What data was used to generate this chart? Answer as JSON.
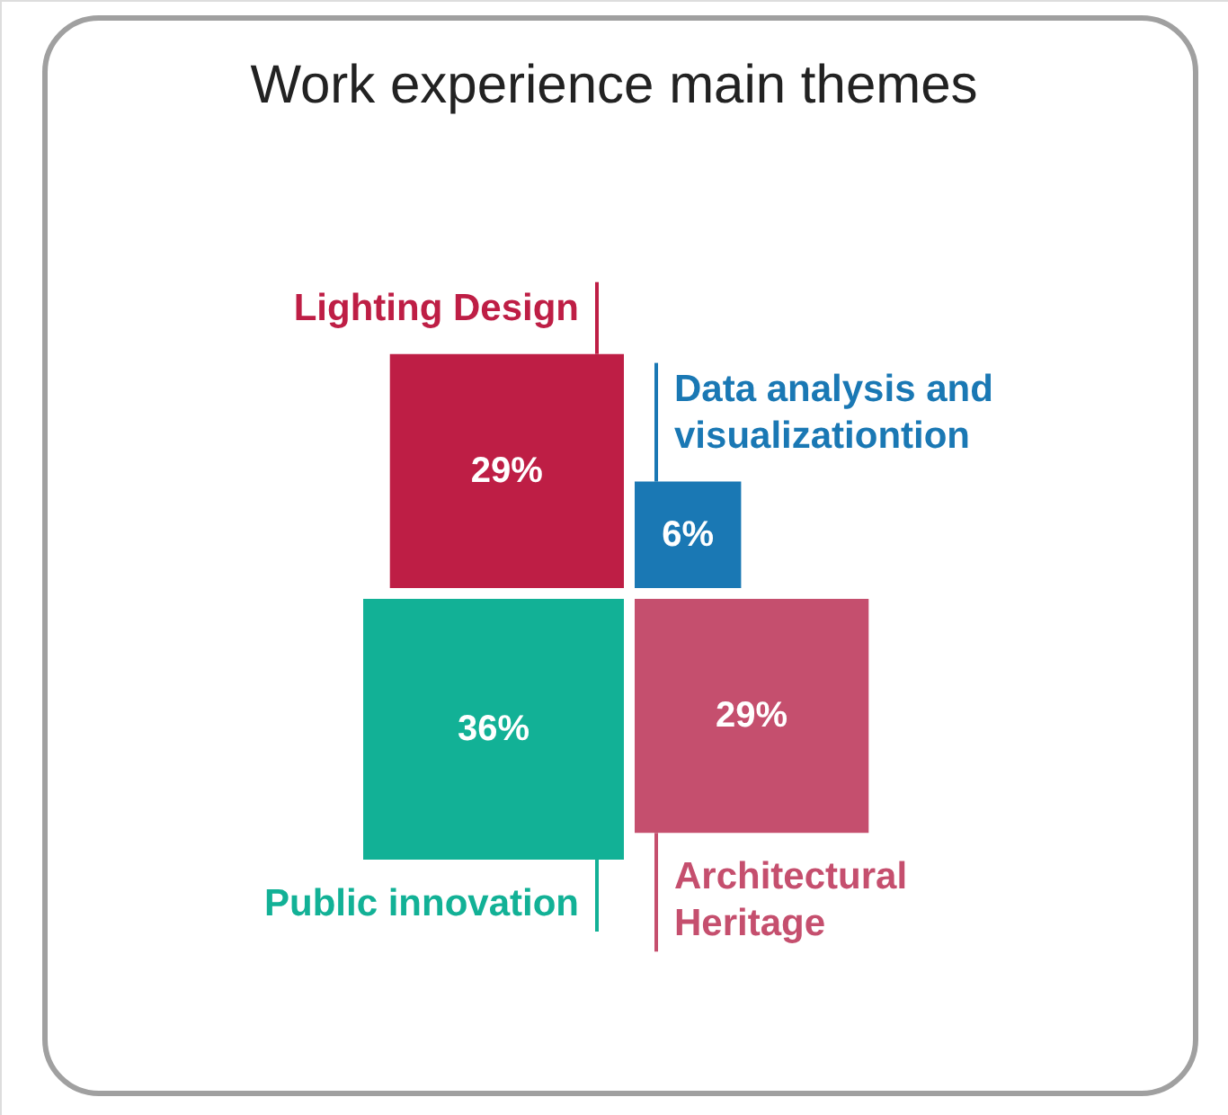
{
  "chart_data": {
    "type": "other",
    "title": "Work experience main themes",
    "categories": [
      "Lighting Design",
      "Data analysis and\nvisualizationtion",
      "Public innovation",
      "Architectural\nHeritage"
    ],
    "values": [
      29,
      6,
      36,
      29
    ],
    "value_labels": [
      "29%",
      "6%",
      "36%",
      "29%"
    ],
    "colors": [
      "#be1e45",
      "#1a78b4",
      "#12b196",
      "#c54f6e"
    ]
  }
}
